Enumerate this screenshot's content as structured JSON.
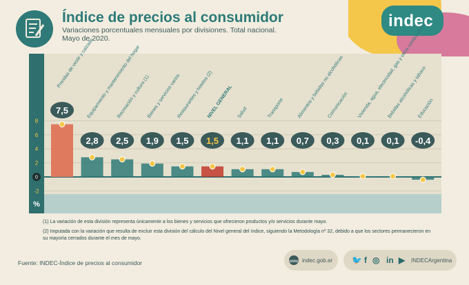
{
  "header": {
    "title": "Índice de precios al consumidor",
    "subtitle_line1": "Variaciones porcentuales mensuales por divisiones. Total nacional.",
    "subtitle_line2": "Mayo de 2020."
  },
  "logo_text": "indec",
  "chart_data": {
    "type": "bar",
    "categories": [
      "Prendas de vestir y calzado",
      "Equipamiento y mantenimiento del hogar",
      "Recreación y cultura (1)",
      "Bienes y servicios varios",
      "Restaurantes y hoteles (2)",
      "NIVEL GENERAL",
      "Salud",
      "Transporte",
      "Alimentos y bebidas no alcohólicas",
      "Comunicación",
      "Vivienda, agua, electricidad, gas y otros combustibles",
      "Bebidas alcohólicas y tabaco",
      "Educación"
    ],
    "values": [
      7.5,
      2.8,
      2.5,
      1.9,
      1.5,
      1.5,
      1.1,
      1.1,
      0.7,
      0.3,
      0.1,
      0.1,
      -0.4
    ],
    "value_labels": [
      "7,5",
      "2,8",
      "2,5",
      "1,9",
      "1,5",
      "1,5",
      "1,1",
      "1,1",
      "0,7",
      "0,3",
      "0,1",
      "0,1",
      "-0,4"
    ],
    "yticks": [
      "8",
      "6",
      "4",
      "2",
      "0",
      "-2"
    ],
    "ylabel": "%",
    "ylim": [
      -3,
      9
    ],
    "colors": {
      "bar_highlight": "#e07a5f",
      "bar_default": "#2f7a78",
      "bar_general": "#c0392b",
      "bubble": "#3b5a5a",
      "bubble_general_text": "#f4c74a",
      "axis_band": "#2f6f6d",
      "plot_bg": "#e6e0cf"
    }
  },
  "footnotes": {
    "note1": "(1) La variación de esta división representa únicamente a los bienes y servicios que ofrecieron productos y/o servicios durante mayo.",
    "note2": "(2) Imputada con la variación que resulta de excluir esta división del cálculo del Nivel general del índice, siguiendo la Metodología nº 32, debido a que los sectores permanecieron en su mayoría cerrados durante el mes de mayo."
  },
  "footer": {
    "source": "Fuente: INDEC-Índice de precios al consumidor",
    "website": "indec.gob.ar",
    "social_handle": "INDECArgentina"
  }
}
